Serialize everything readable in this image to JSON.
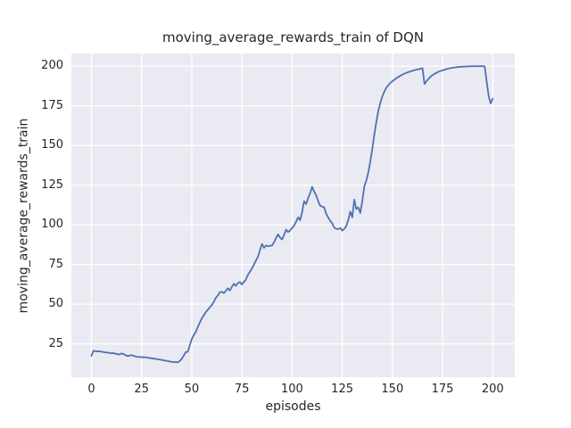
{
  "chart_data": {
    "type": "line",
    "title": "moving_average_rewards_train of DQN",
    "xlabel": "episodes",
    "ylabel": "moving_average_rewards_train",
    "xlim": [
      -10,
      211
    ],
    "ylim": [
      4,
      208
    ],
    "xticks": [
      0,
      25,
      50,
      75,
      100,
      125,
      150,
      175,
      200
    ],
    "yticks": [
      25,
      50,
      75,
      100,
      125,
      150,
      175,
      200
    ],
    "grid": true,
    "legend": "none",
    "line_color": "#4C72B0",
    "plot_bg_color": "#EAEAF2",
    "grid_color": "#FFFFFF",
    "figure_bg_color": "#FFFFFF",
    "text_color": "#262626",
    "series": [
      {
        "name": "moving_average_rewards_train",
        "x_start": 0,
        "x_step": 1,
        "values": [
          17.5,
          20.6,
          20.4,
          20.2,
          20.3,
          20.1,
          19.8,
          19.6,
          19.5,
          19.3,
          19.0,
          19.2,
          18.8,
          18.5,
          18.3,
          19.0,
          18.6,
          17.8,
          17.4,
          17.6,
          17.9,
          17.5,
          17.0,
          16.8,
          16.7,
          16.6,
          16.6,
          16.5,
          16.3,
          16.1,
          15.9,
          15.7,
          15.5,
          15.3,
          15.1,
          14.9,
          14.6,
          14.4,
          14.2,
          13.9,
          13.7,
          13.4,
          13.6,
          13.3,
          14.2,
          15.5,
          17.5,
          19.8,
          20.0,
          24.0,
          28.0,
          30.5,
          32.5,
          35.5,
          38.5,
          41.0,
          43.0,
          45.0,
          46.5,
          48.0,
          49.5,
          51.5,
          54.0,
          55.5,
          57.5,
          57.8,
          57.0,
          58.5,
          60.0,
          58.6,
          61.0,
          62.9,
          61.6,
          63.3,
          64.0,
          62.4,
          64.0,
          65.5,
          68.5,
          70.5,
          72.5,
          75.0,
          77.5,
          80.0,
          84.0,
          88.0,
          85.5,
          87.0,
          86.5,
          86.8,
          87.0,
          88.9,
          91.7,
          94.0,
          92.0,
          90.8,
          93.6,
          97.0,
          95.5,
          96.5,
          98.0,
          99.5,
          102.0,
          104.7,
          102.9,
          108.0,
          114.9,
          113.1,
          117.0,
          120.0,
          124.0,
          121.0,
          118.6,
          115.0,
          112.1,
          111.5,
          111.0,
          107.0,
          104.7,
          102.5,
          101.0,
          98.2,
          97.5,
          97.3,
          98.0,
          96.4,
          97.5,
          99.2,
          103.0,
          108.4,
          104.7,
          115.9,
          110.0,
          111.0,
          107.5,
          115.0,
          124.2,
          128.0,
          133.0,
          140.0,
          148.0,
          157.0,
          165.0,
          172.0,
          177.0,
          181.0,
          184.0,
          186.5,
          188.0,
          189.5,
          190.5,
          191.5,
          192.5,
          193.2,
          194.0,
          194.7,
          195.3,
          195.8,
          196.3,
          196.7,
          197.1,
          197.5,
          197.8,
          198.1,
          198.4,
          198.7,
          188.8,
          190.5,
          192.0,
          193.3,
          194.4,
          195.2,
          195.9,
          196.5,
          197.0,
          197.4,
          197.8,
          198.2,
          198.5,
          198.8,
          199.0,
          199.2,
          199.4,
          199.5,
          199.6,
          199.7,
          199.8,
          199.8,
          199.9,
          199.9,
          199.9,
          200.0,
          200.0,
          200.0,
          200.0,
          200.0,
          199.9,
          190.0,
          181.0,
          176.5,
          179.5
        ]
      }
    ]
  }
}
